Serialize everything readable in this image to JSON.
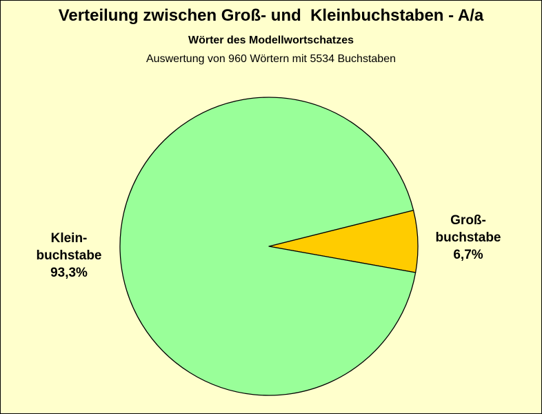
{
  "chart_data": {
    "type": "pie",
    "title": "Verteilung zwischen Groß- und  Kleinbuchstaben - A/a",
    "subtitle": "Wörter des Modellwortschatzes",
    "subtitle2": "Auswertung von 960 Wörtern mit 5534 Buchstaben",
    "slices": [
      {
        "label_lines": [
          "Groß-",
          "buchstabe"
        ],
        "value": 6.7,
        "value_label": "6,7%",
        "color": "#FFCC00"
      },
      {
        "label_lines": [
          "Klein-",
          "buchstabe"
        ],
        "value": 93.3,
        "value_label": "93,3%",
        "color": "#99FF99"
      }
    ],
    "background": "#FFFFCC",
    "legend": "none"
  }
}
